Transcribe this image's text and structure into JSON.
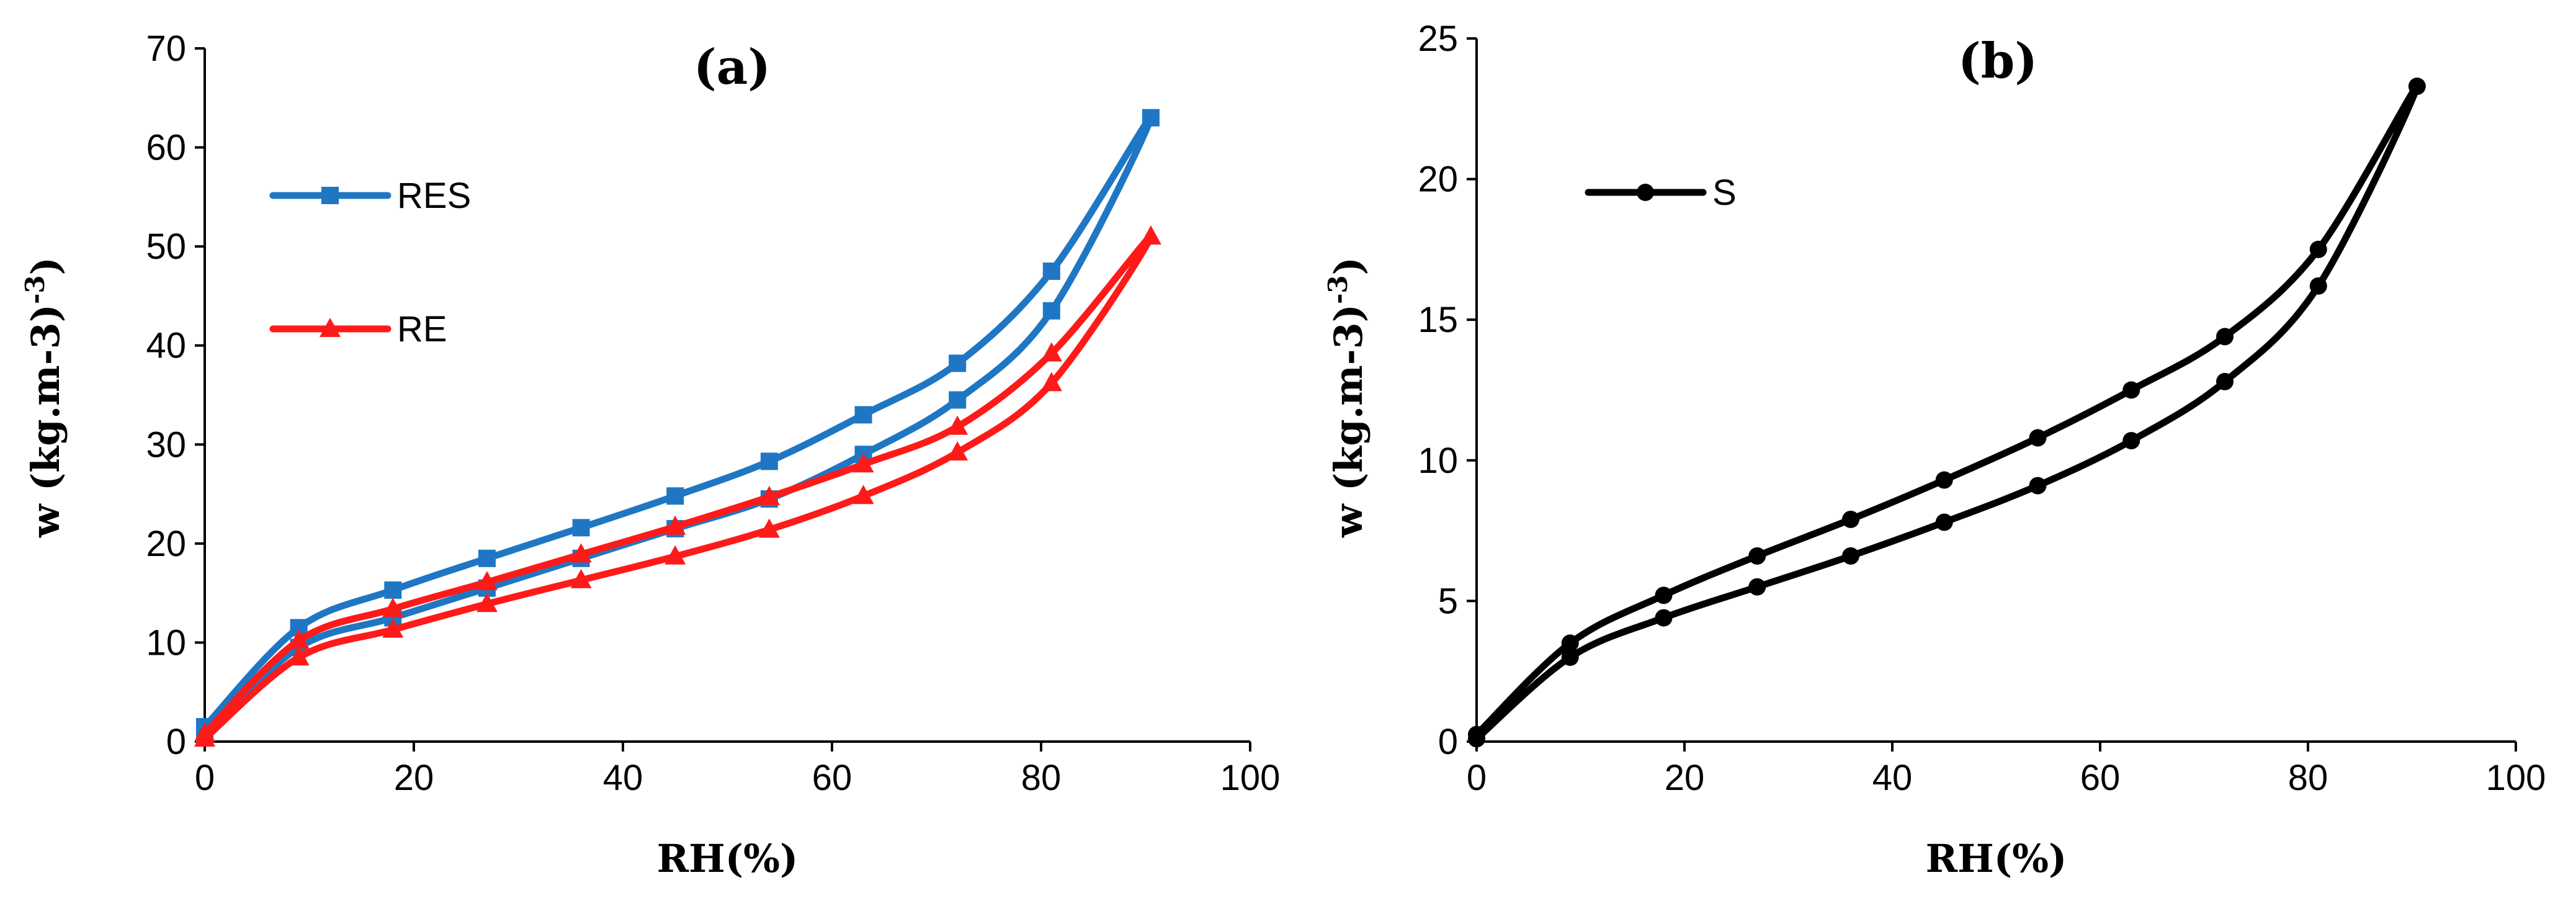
{
  "chart_data": [
    {
      "type": "line",
      "title": "(a)",
      "xlabel": "RH(%)",
      "ylabel": "w (kg.m-3)",
      "ylabel_sup": "-3",
      "xlim": [
        0,
        100
      ],
      "ylim": [
        0,
        70
      ],
      "xticks": [
        "0",
        "20",
        "40",
        "60",
        "80",
        "100"
      ],
      "yticks": [
        "0",
        "10",
        "20",
        "30",
        "40",
        "50",
        "60",
        "70"
      ],
      "grid": false,
      "legend_position": "upper-left",
      "series": [
        {
          "name": "RES",
          "color": "#1F77C4",
          "marker": "square",
          "x": [
            0,
            9,
            18,
            27,
            36,
            45,
            54,
            63,
            72,
            81,
            90.5,
            81,
            72,
            63,
            54,
            45,
            36,
            27,
            18,
            9,
            0
          ],
          "y": [
            0.5,
            9.5,
            12.5,
            15.5,
            18.5,
            21.5,
            24.5,
            29,
            34.5,
            43.5,
            63,
            47.5,
            38.2,
            33,
            28.3,
            24.8,
            21.6,
            18.5,
            15.3,
            11.5,
            1.5
          ]
        },
        {
          "name": "RE",
          "color": "#FF1A1A",
          "marker": "triangle",
          "x": [
            0,
            9,
            18,
            27,
            36,
            45,
            54,
            63,
            72,
            81,
            90.5,
            81,
            72,
            63,
            54,
            45,
            36,
            27,
            18,
            9,
            0
          ],
          "y": [
            0.3,
            8.5,
            11.3,
            13.9,
            16.3,
            18.7,
            21.4,
            24.8,
            29.2,
            36.2,
            51,
            39.2,
            31.8,
            28,
            24.7,
            21.7,
            18.9,
            16.1,
            13.4,
            10.2,
            0.8
          ]
        }
      ]
    },
    {
      "type": "line",
      "title": "(b)",
      "xlabel": "RH(%)",
      "ylabel": "w (kg.m-3)",
      "ylabel_sup": "-3",
      "xlim": [
        0,
        100
      ],
      "ylim": [
        0,
        25
      ],
      "xticks": [
        "0",
        "20",
        "40",
        "60",
        "80",
        "100"
      ],
      "yticks": [
        "0",
        "5",
        "10",
        "15",
        "20",
        "25"
      ],
      "grid": false,
      "legend_position": "upper-left",
      "series": [
        {
          "name": "S",
          "color": "#000000",
          "marker": "circle",
          "x": [
            0,
            9,
            18,
            27,
            36,
            45,
            54,
            63,
            72,
            81,
            90.5,
            81,
            72,
            63,
            54,
            45,
            36,
            27,
            18,
            9,
            0
          ],
          "y": [
            0.1,
            3.0,
            4.4,
            5.5,
            6.6,
            7.8,
            9.1,
            10.7,
            12.8,
            16.2,
            23.3,
            17.5,
            14.4,
            12.5,
            10.8,
            9.3,
            7.9,
            6.6,
            5.2,
            3.5,
            0.25
          ]
        }
      ]
    }
  ]
}
